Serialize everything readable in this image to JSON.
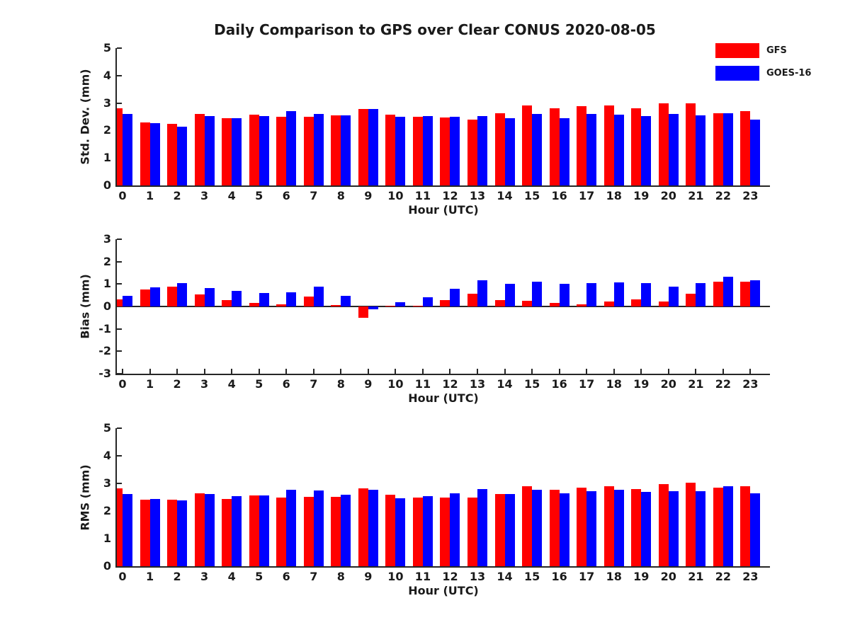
{
  "title": "Daily Comparison to GPS over Clear CONUS 2020-08-05",
  "legend": [
    {
      "label": "GFS",
      "color": "#ff0000"
    },
    {
      "label": "GOES-16",
      "color": "#0000ff"
    }
  ],
  "colors": {
    "gfs": "#ff0000",
    "goes16": "#0000ff",
    "axis": "#262626",
    "text": "#1a1a1a"
  },
  "xlabel": "Hour (UTC)",
  "hours": [
    "0",
    "1",
    "2",
    "3",
    "4",
    "5",
    "6",
    "7",
    "8",
    "9",
    "10",
    "11",
    "12",
    "13",
    "14",
    "15",
    "16",
    "17",
    "18",
    "19",
    "20",
    "21",
    "22",
    "23"
  ],
  "chart_data": [
    {
      "type": "bar",
      "ylabel": "Std. Dev. (mm)",
      "xlabel": "Hour (UTC)",
      "ylim": [
        0,
        5
      ],
      "yticks": [
        0,
        1,
        2,
        3,
        4,
        5
      ],
      "categories": [
        0,
        1,
        2,
        3,
        4,
        5,
        6,
        7,
        8,
        9,
        10,
        11,
        12,
        13,
        14,
        15,
        16,
        17,
        18,
        19,
        20,
        21,
        22,
        23
      ],
      "series": [
        {
          "name": "GFS",
          "color": "#ff0000",
          "values": [
            2.8,
            2.3,
            2.25,
            2.6,
            2.45,
            2.58,
            2.5,
            2.5,
            2.55,
            2.78,
            2.58,
            2.5,
            2.48,
            2.4,
            2.62,
            2.9,
            2.8,
            2.88,
            2.92,
            2.8,
            2.98,
            3.0,
            2.64,
            2.7
          ]
        },
        {
          "name": "GOES-16",
          "color": "#0000ff",
          "values": [
            2.6,
            2.28,
            2.13,
            2.52,
            2.46,
            2.52,
            2.7,
            2.6,
            2.55,
            2.78,
            2.5,
            2.52,
            2.5,
            2.52,
            2.45,
            2.6,
            2.44,
            2.6,
            2.58,
            2.52,
            2.6,
            2.54,
            2.62,
            2.4
          ]
        }
      ]
    },
    {
      "type": "bar",
      "ylabel": "Bias (mm)",
      "xlabel": "Hour (UTC)",
      "ylim": [
        -3,
        3
      ],
      "yticks": [
        -3,
        -2,
        -1,
        0,
        1,
        2,
        3
      ],
      "categories": [
        0,
        1,
        2,
        3,
        4,
        5,
        6,
        7,
        8,
        9,
        10,
        11,
        12,
        13,
        14,
        15,
        16,
        17,
        18,
        19,
        20,
        21,
        22,
        23
      ],
      "series": [
        {
          "name": "GFS",
          "color": "#ff0000",
          "values": [
            0.33,
            0.75,
            0.9,
            0.53,
            0.27,
            0.17,
            0.08,
            0.45,
            0.05,
            -0.5,
            0.02,
            0.03,
            0.28,
            0.58,
            0.28,
            0.25,
            0.17,
            0.1,
            0.21,
            0.33,
            0.22,
            0.57,
            1.1,
            1.12
          ]
        },
        {
          "name": "GOES-16",
          "color": "#0000ff",
          "values": [
            0.48,
            0.84,
            1.03,
            0.82,
            0.68,
            0.6,
            0.64,
            0.9,
            0.48,
            -0.12,
            0.18,
            0.4,
            0.78,
            1.18,
            1.0,
            1.12,
            1.0,
            1.04,
            1.08,
            1.03,
            0.87,
            1.04,
            1.33,
            1.18
          ]
        }
      ]
    },
    {
      "type": "bar",
      "ylabel": "RMS (mm)",
      "xlabel": "Hour (UTC)",
      "ylim": [
        0,
        5
      ],
      "yticks": [
        0,
        1,
        2,
        3,
        4,
        5
      ],
      "categories": [
        0,
        1,
        2,
        3,
        4,
        5,
        6,
        7,
        8,
        9,
        10,
        11,
        12,
        13,
        14,
        15,
        16,
        17,
        18,
        19,
        20,
        21,
        22,
        23
      ],
      "series": [
        {
          "name": "GFS",
          "color": "#ff0000",
          "values": [
            2.82,
            2.42,
            2.41,
            2.64,
            2.44,
            2.56,
            2.5,
            2.52,
            2.51,
            2.81,
            2.58,
            2.48,
            2.5,
            2.48,
            2.62,
            2.89,
            2.77,
            2.85,
            2.9,
            2.79,
            2.97,
            3.02,
            2.85,
            2.9
          ]
        },
        {
          "name": "GOES-16",
          "color": "#0000ff",
          "values": [
            2.62,
            2.44,
            2.38,
            2.61,
            2.53,
            2.56,
            2.78,
            2.75,
            2.58,
            2.78,
            2.47,
            2.53,
            2.63,
            2.79,
            2.62,
            2.78,
            2.65,
            2.73,
            2.77,
            2.68,
            2.72,
            2.72,
            2.89,
            2.63
          ]
        }
      ]
    }
  ]
}
